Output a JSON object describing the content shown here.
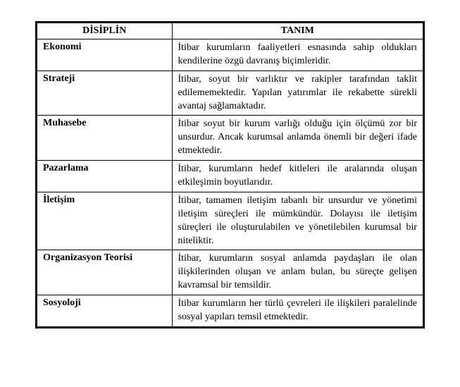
{
  "table": {
    "headers": {
      "col1": "DİSİPLİN",
      "col2": "TANIM"
    },
    "rows": [
      {
        "discipline": "Ekonomi",
        "definition": "İtibar kurumların faaliyetleri esnasında sahip oldukları kendilerine özgü davranış biçimleridir."
      },
      {
        "discipline": "Strateji",
        "definition": "İtibar, soyut bir varlıktır ve rakipler tarafından taklit edilememektedir. Yapılan yatırımlar ile rekabette sürekli avantaj sağlamaktadır."
      },
      {
        "discipline": "Muhasebe",
        "definition": "İtibar soyut bir kurum varlığı olduğu için ölçümü zor bir unsurdur. Ancak kurumsal anlamda önemli bir değeri ifade etmektedir."
      },
      {
        "discipline": "Pazarlama",
        "definition": "İtibar, kurumların hedef kitleleri ile aralarında oluşan etkileşimin boyutlarıdır."
      },
      {
        "discipline": "İletişim",
        "definition": "İtibar, tamamen iletişim tabanlı bir unsurdur ve yönetimi iletişim süreçleri ile mümkündür. Dolayısı ile iletişim süreçleri ile oluşturulabilen ve yönetilebilen kurumsal bir niteliktir."
      },
      {
        "discipline": "Organizasyon Teorisi",
        "definition": "İtibar, kurumların sosyal anlamda paydaşları ile olan ilişkilerinden oluşan ve anlam bulan, bu süreçte gelişen kavramsal bir temsildir."
      },
      {
        "discipline": "Sosyoloji",
        "definition": "İtibar kurumların her türlü çevreleri ile ilişkileri paralelinde sosyal yapıları temsil etmektedir."
      }
    ]
  },
  "style": {
    "font_family": "Times New Roman",
    "header_fontsize": 14,
    "cell_fontsize": 14,
    "border_color": "#000000",
    "outer_border_width": 3,
    "inner_border_width": 1,
    "background_color": "#ffffff",
    "col1_width_pct": 35,
    "col2_width_pct": 65,
    "definition_align": "justify"
  }
}
